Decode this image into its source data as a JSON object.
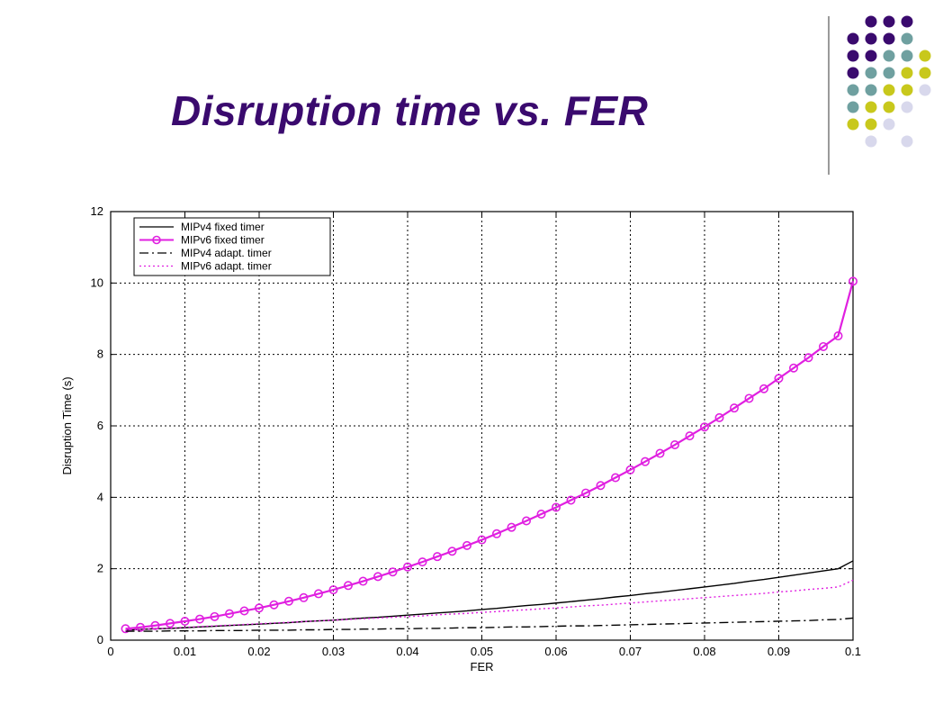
{
  "slide": {
    "title": "Disruption time vs. FER",
    "decor_colors": {
      "purple": "#3a0a6e",
      "teal": "#6fa0a0",
      "olive": "#c8c81c",
      "lavender": "#d8d8ec"
    }
  },
  "chart_data": {
    "type": "line",
    "title": "",
    "xlabel": "FER",
    "ylabel": "Disruption Time (s)",
    "xlim": [
      0,
      0.1
    ],
    "ylim": [
      0,
      12
    ],
    "xticks": [
      "0",
      "0.01",
      "0.02",
      "0.03",
      "0.04",
      "0.05",
      "0.06",
      "0.07",
      "0.08",
      "0.09",
      "0.1"
    ],
    "yticks": [
      "0",
      "2",
      "4",
      "6",
      "8",
      "10",
      "12"
    ],
    "grid": true,
    "legend_position": "top-left",
    "x": [
      0.002,
      0.004,
      0.006,
      0.008,
      0.01,
      0.012,
      0.014,
      0.016,
      0.018,
      0.02,
      0.022,
      0.024,
      0.026,
      0.028,
      0.03,
      0.032,
      0.034,
      0.036,
      0.038,
      0.04,
      0.042,
      0.044,
      0.046,
      0.048,
      0.05,
      0.052,
      0.054,
      0.056,
      0.058,
      0.06,
      0.062,
      0.064,
      0.066,
      0.068,
      0.07,
      0.072,
      0.074,
      0.076,
      0.078,
      0.08,
      0.082,
      0.084,
      0.086,
      0.088,
      0.09,
      0.092,
      0.094,
      0.096,
      0.098,
      0.1
    ],
    "series": [
      {
        "name": "MIPv4 fixed timer",
        "color": "#000000",
        "style": "solid",
        "marker": "none",
        "values": [
          0.28,
          0.3,
          0.32,
          0.33,
          0.35,
          0.37,
          0.39,
          0.41,
          0.43,
          0.45,
          0.47,
          0.49,
          0.52,
          0.54,
          0.56,
          0.59,
          0.62,
          0.64,
          0.67,
          0.7,
          0.73,
          0.76,
          0.79,
          0.82,
          0.86,
          0.89,
          0.93,
          0.97,
          1.0,
          1.04,
          1.08,
          1.12,
          1.16,
          1.21,
          1.25,
          1.3,
          1.34,
          1.39,
          1.44,
          1.49,
          1.54,
          1.59,
          1.65,
          1.7,
          1.76,
          1.82,
          1.88,
          1.94,
          2.0,
          2.22
        ]
      },
      {
        "name": "MIPv6 fixed timer",
        "color": "#e020e0",
        "style": "solid",
        "marker": "circle",
        "values": [
          0.32,
          0.36,
          0.41,
          0.47,
          0.53,
          0.59,
          0.66,
          0.74,
          0.82,
          0.9,
          0.99,
          1.09,
          1.19,
          1.3,
          1.41,
          1.53,
          1.65,
          1.78,
          1.91,
          2.05,
          2.19,
          2.34,
          2.49,
          2.65,
          2.81,
          2.98,
          3.16,
          3.34,
          3.53,
          3.72,
          3.92,
          4.12,
          4.33,
          4.55,
          4.77,
          5.0,
          5.23,
          5.47,
          5.72,
          5.97,
          6.23,
          6.5,
          6.77,
          7.04,
          7.33,
          7.62,
          7.91,
          8.22,
          8.52,
          10.05
        ]
      },
      {
        "name": "MIPv4 adapt. timer",
        "color": "#000000",
        "style": "dashdot",
        "marker": "none",
        "values": [
          0.25,
          0.25,
          0.25,
          0.26,
          0.26,
          0.26,
          0.27,
          0.27,
          0.27,
          0.28,
          0.28,
          0.28,
          0.29,
          0.29,
          0.3,
          0.3,
          0.31,
          0.31,
          0.32,
          0.32,
          0.33,
          0.33,
          0.34,
          0.35,
          0.35,
          0.36,
          0.37,
          0.37,
          0.38,
          0.39,
          0.4,
          0.4,
          0.41,
          0.42,
          0.43,
          0.44,
          0.45,
          0.46,
          0.47,
          0.48,
          0.49,
          0.5,
          0.51,
          0.52,
          0.53,
          0.54,
          0.55,
          0.57,
          0.58,
          0.62
        ]
      },
      {
        "name": "MIPv6 adapt. timer",
        "color": "#e020e0",
        "style": "dotted",
        "marker": "none",
        "values": [
          0.28,
          0.3,
          0.32,
          0.34,
          0.36,
          0.38,
          0.4,
          0.42,
          0.44,
          0.46,
          0.48,
          0.5,
          0.52,
          0.54,
          0.56,
          0.58,
          0.6,
          0.62,
          0.64,
          0.66,
          0.68,
          0.71,
          0.73,
          0.75,
          0.78,
          0.8,
          0.83,
          0.85,
          0.88,
          0.9,
          0.93,
          0.96,
          0.98,
          1.01,
          1.04,
          1.07,
          1.1,
          1.13,
          1.16,
          1.19,
          1.22,
          1.25,
          1.28,
          1.31,
          1.35,
          1.38,
          1.42,
          1.45,
          1.49,
          1.68
        ]
      }
    ]
  }
}
